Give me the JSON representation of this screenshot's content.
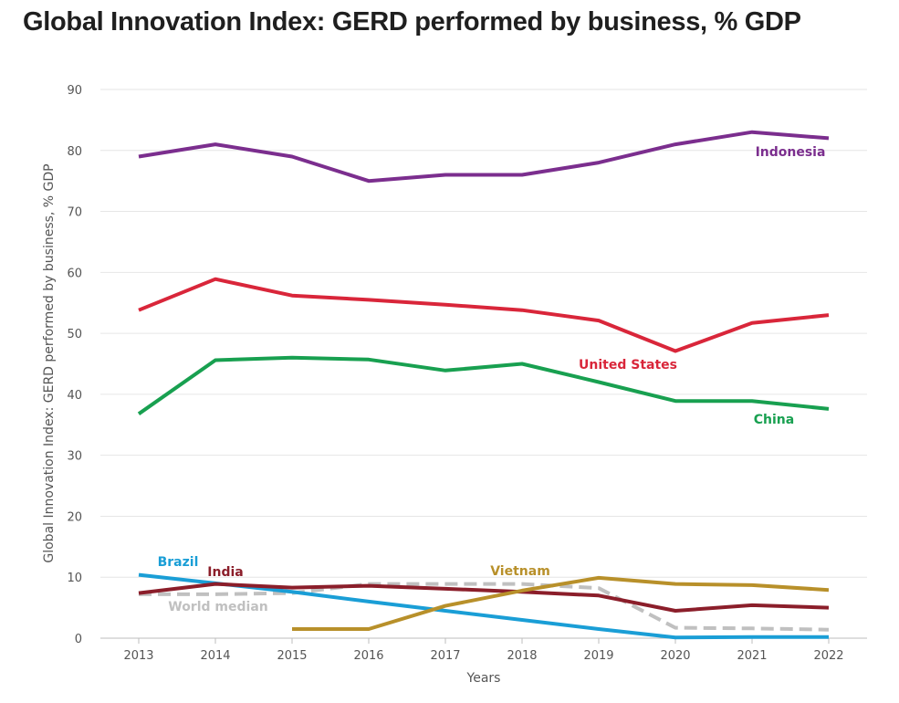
{
  "chart_data": {
    "type": "line",
    "title": "Global Innovation Index: GERD performed by business, % GDP",
    "xlabel": "Years",
    "ylabel": "Global Innovation Index: GERD performed by business, % GDP",
    "x": [
      2013,
      2014,
      2015,
      2016,
      2017,
      2018,
      2019,
      2020,
      2021,
      2022
    ],
    "ylim": [
      0,
      90
    ],
    "yticks": [
      0,
      10,
      20,
      30,
      40,
      50,
      60,
      70,
      80,
      90
    ],
    "grid": true,
    "legend": "inline labels",
    "series": [
      {
        "key": "indonesia",
        "name": "Indonesia",
        "color": "#7b2e8e",
        "dashed": false,
        "values": [
          79,
          81,
          79,
          75,
          76,
          76,
          78,
          81,
          83,
          82
        ]
      },
      {
        "key": "united_states",
        "name": "United States",
        "color": "#d9263a",
        "dashed": false,
        "values": [
          53.8,
          58.9,
          56.2,
          55.5,
          54.7,
          53.8,
          52.1,
          47.1,
          51.7,
          53
        ]
      },
      {
        "key": "china",
        "name": "China",
        "color": "#18a050",
        "dashed": false,
        "values": [
          36.8,
          45.6,
          46,
          45.7,
          43.9,
          45,
          42,
          38.9,
          38.9,
          37.6
        ]
      },
      {
        "key": "brazil",
        "name": "Brazil",
        "color": "#1a9ed6",
        "dashed": false,
        "values": [
          10.4,
          9,
          7.6,
          6,
          4.5,
          3,
          1.5,
          0.1,
          0.2,
          0.2
        ]
      },
      {
        "key": "india",
        "name": "India",
        "color": "#8b1e2a",
        "dashed": false,
        "values": [
          7.4,
          8.9,
          8.3,
          8.6,
          8.1,
          7.6,
          7,
          4.5,
          5.4,
          5
        ]
      },
      {
        "key": "world_median",
        "name": "World median",
        "color": "#c0c0c0",
        "dashed": true,
        "values": [
          7.2,
          7.2,
          7.4,
          8.9,
          8.9,
          8.9,
          8.2,
          1.7,
          1.6,
          1.4
        ]
      },
      {
        "key": "vietnam",
        "name": "Vietnam",
        "color": "#b8902a",
        "dashed": false,
        "values": [
          null,
          null,
          1.5,
          1.5,
          5.3,
          7.8,
          9.9,
          8.9,
          8.7,
          7.9
        ]
      }
    ]
  }
}
